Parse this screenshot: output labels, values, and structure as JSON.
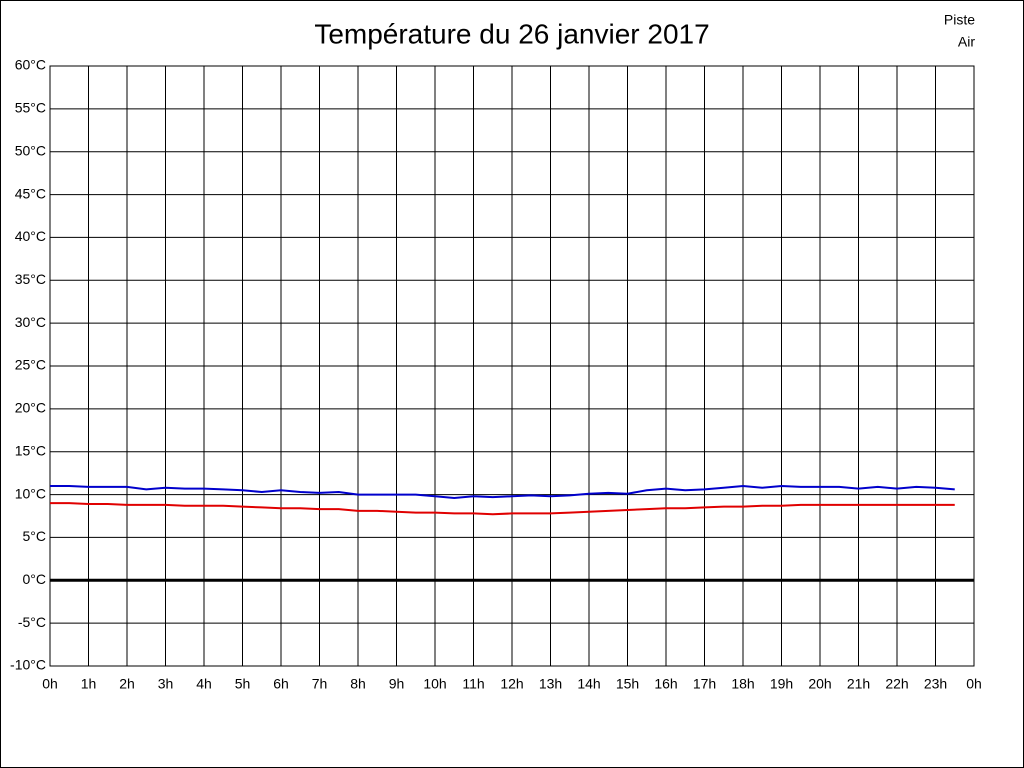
{
  "chart_data": {
    "type": "line",
    "title": "Température du 26 janvier 2017",
    "x": [
      0,
      0.5,
      1,
      1.5,
      2,
      2.5,
      3,
      3.5,
      4,
      4.5,
      5,
      5.5,
      6,
      6.5,
      7,
      7.5,
      8,
      8.5,
      9,
      9.5,
      10,
      10.5,
      11,
      11.5,
      12,
      12.5,
      13,
      13.5,
      14,
      14.5,
      15,
      15.5,
      16,
      16.5,
      17,
      17.5,
      18,
      18.5,
      19,
      19.5,
      20,
      20.5,
      21,
      21.5,
      22,
      22.5,
      23,
      23.5
    ],
    "series": [
      {
        "name": "Piste",
        "color": "#e00000",
        "values": [
          9,
          9,
          8.9,
          8.9,
          8.8,
          8.8,
          8.8,
          8.7,
          8.7,
          8.7,
          8.6,
          8.5,
          8.4,
          8.4,
          8.3,
          8.3,
          8.1,
          8.1,
          8,
          7.9,
          7.9,
          7.8,
          7.8,
          7.7,
          7.8,
          7.8,
          7.8,
          7.9,
          8,
          8.1,
          8.2,
          8.3,
          8.4,
          8.4,
          8.5,
          8.6,
          8.6,
          8.7,
          8.7,
          8.8,
          8.8,
          8.8,
          8.8,
          8.8,
          8.8,
          8.8,
          8.8,
          8.8
        ]
      },
      {
        "name": "Air",
        "color": "#0000cc",
        "values": [
          11,
          11,
          10.9,
          10.9,
          10.9,
          10.6,
          10.8,
          10.7,
          10.7,
          10.6,
          10.5,
          10.3,
          10.5,
          10.3,
          10.2,
          10.3,
          10,
          10,
          10,
          10,
          9.8,
          9.6,
          9.8,
          9.7,
          9.8,
          9.9,
          9.8,
          9.9,
          10.1,
          10.2,
          10.1,
          10.5,
          10.7,
          10.5,
          10.6,
          10.8,
          11,
          10.8,
          11,
          10.9,
          10.9,
          10.9,
          10.7,
          10.9,
          10.7,
          10.9,
          10.8,
          10.6
        ]
      }
    ],
    "xlim": [
      0,
      24
    ],
    "xticks": [
      {
        "value": 0,
        "label": "0h"
      },
      {
        "value": 1,
        "label": "1h"
      },
      {
        "value": 2,
        "label": "2h"
      },
      {
        "value": 3,
        "label": "3h"
      },
      {
        "value": 4,
        "label": "4h"
      },
      {
        "value": 5,
        "label": "5h"
      },
      {
        "value": 6,
        "label": "6h"
      },
      {
        "value": 7,
        "label": "7h"
      },
      {
        "value": 8,
        "label": "8h"
      },
      {
        "value": 9,
        "label": "9h"
      },
      {
        "value": 10,
        "label": "10h"
      },
      {
        "value": 11,
        "label": "11h"
      },
      {
        "value": 12,
        "label": "12h"
      },
      {
        "value": 13,
        "label": "13h"
      },
      {
        "value": 14,
        "label": "14h"
      },
      {
        "value": 15,
        "label": "15h"
      },
      {
        "value": 16,
        "label": "16h"
      },
      {
        "value": 17,
        "label": "17h"
      },
      {
        "value": 18,
        "label": "18h"
      },
      {
        "value": 19,
        "label": "19h"
      },
      {
        "value": 20,
        "label": "20h"
      },
      {
        "value": 21,
        "label": "21h"
      },
      {
        "value": 22,
        "label": "22h"
      },
      {
        "value": 23,
        "label": "23h"
      },
      {
        "value": 24,
        "label": "0h"
      }
    ],
    "ylim": [
      -10,
      60
    ],
    "yticks": [
      {
        "value": -10,
        "label": "-10°C"
      },
      {
        "value": -5,
        "label": "-5°C"
      },
      {
        "value": 0,
        "label": "0°C"
      },
      {
        "value": 5,
        "label": "5°C"
      },
      {
        "value": 10,
        "label": "10°C"
      },
      {
        "value": 15,
        "label": "15°C"
      },
      {
        "value": 20,
        "label": "20°C"
      },
      {
        "value": 25,
        "label": "25°C"
      },
      {
        "value": 30,
        "label": "30°C"
      },
      {
        "value": 35,
        "label": "35°C"
      },
      {
        "value": 40,
        "label": "40°C"
      },
      {
        "value": 45,
        "label": "45°C"
      },
      {
        "value": 50,
        "label": "50°C"
      },
      {
        "value": 55,
        "label": "55°C"
      },
      {
        "value": 60,
        "label": "60°C"
      }
    ],
    "grid": true,
    "legend": "top-right"
  }
}
